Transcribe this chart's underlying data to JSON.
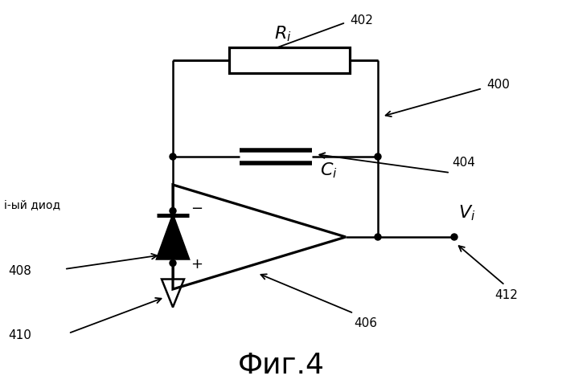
{
  "title": "Фиг.4",
  "title_fontsize": 26,
  "bg_color": "#ffffff",
  "line_color": "#000000",
  "line_width": 1.8,
  "figsize": [
    6.99,
    4.88
  ],
  "dpi": 100
}
